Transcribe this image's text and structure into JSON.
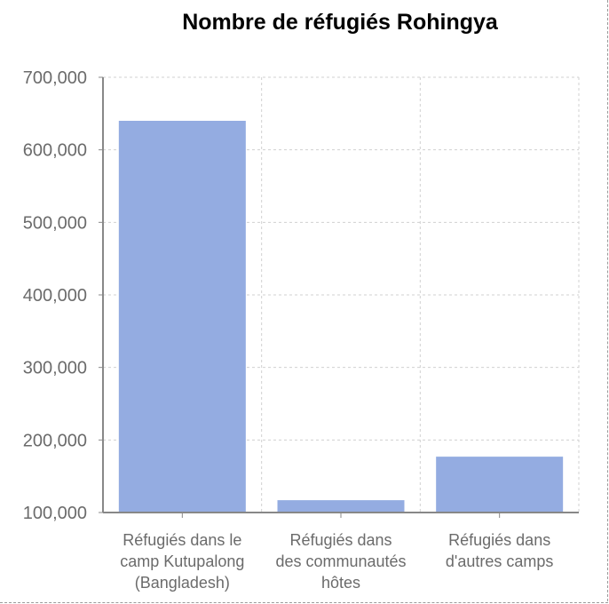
{
  "chart_data": {
    "type": "bar",
    "title": "Nombre de réfugiés Rohingya",
    "categories": [
      [
        "Réfugiés dans le",
        "camp Kutupalong",
        "(Bangladesh)"
      ],
      [
        "Réfugiés dans",
        "des communautés",
        "hôtes"
      ],
      [
        "Réfugiés dans",
        "d'autres camps"
      ]
    ],
    "values": [
      640000,
      117000,
      177000
    ],
    "ylim": [
      100000,
      700000
    ],
    "yticks": [
      100000,
      200000,
      300000,
      400000,
      500000,
      600000,
      700000
    ],
    "ytick_labels": [
      "100,000",
      "200,000",
      "300,000",
      "400,000",
      "500,000",
      "600,000",
      "700,000"
    ],
    "xlabel": "",
    "ylabel": "",
    "grid": true,
    "bar_color": "#94ace1",
    "grid_color": "#d0d0d0",
    "axis_color": "#888888"
  }
}
